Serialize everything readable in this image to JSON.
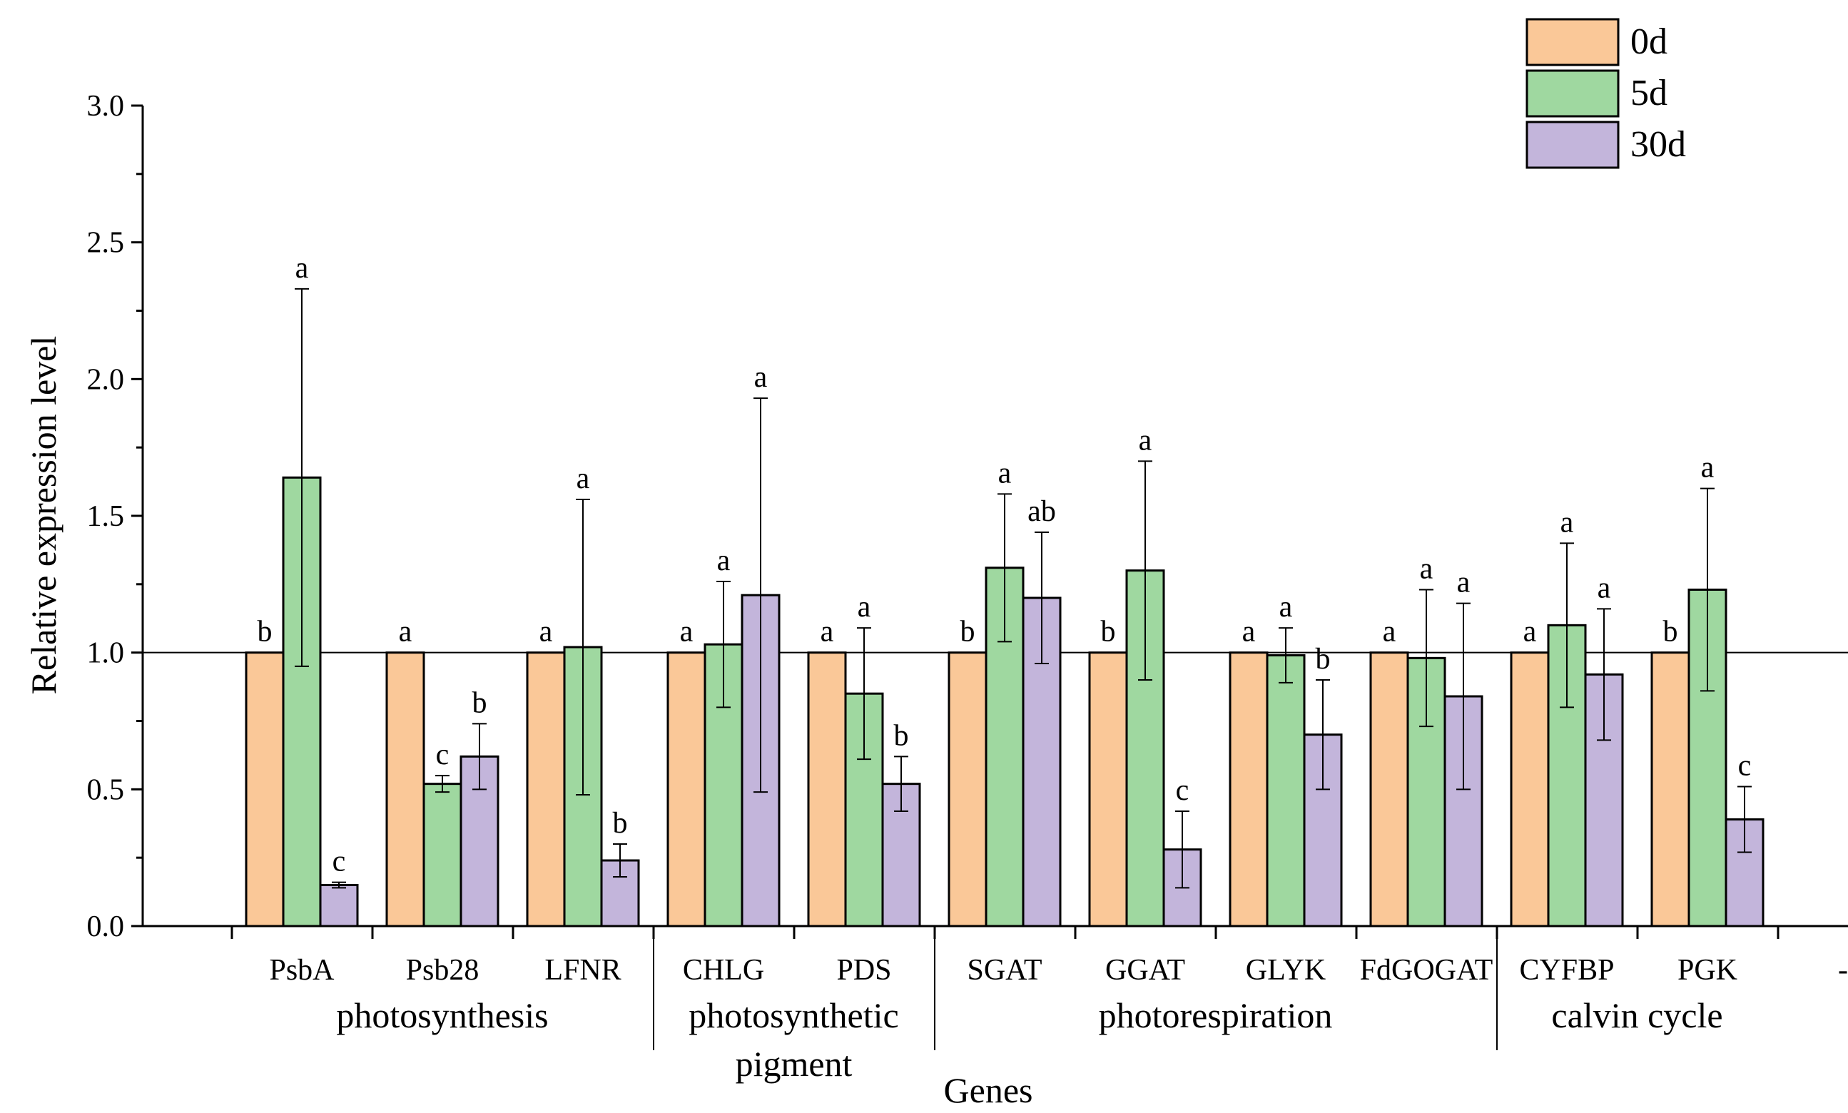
{
  "chart_data": {
    "type": "bar",
    "title": "",
    "xlabel": "Genes",
    "ylabel": "Relative expression level",
    "ylim": [
      0,
      3.0
    ],
    "yticks": [
      "0.0",
      "0.5",
      "1.0",
      "1.5",
      "2.0",
      "2.5",
      "3.0"
    ],
    "reference_line": 1.0,
    "categories": [
      "PsbA",
      "Psb28",
      "LFNR",
      "CHLG",
      "PDS",
      "SGAT",
      "GGAT",
      "GLYK",
      "FdGOGAT",
      "CYFBP",
      "PGK"
    ],
    "extra_tick_label": "--",
    "series": [
      {
        "name": "0d",
        "color": "#FAC898",
        "values": [
          1.0,
          1.0,
          1.0,
          1.0,
          1.0,
          1.0,
          1.0,
          1.0,
          1.0,
          1.0,
          1.0
        ],
        "errors": [
          null,
          null,
          null,
          null,
          null,
          null,
          null,
          null,
          null,
          null,
          null
        ],
        "letters": [
          "b",
          "a",
          "a",
          "a",
          "a",
          "b",
          "b",
          "a",
          "a",
          "a",
          "b"
        ]
      },
      {
        "name": "5d",
        "color": "#9FD8A0",
        "values": [
          1.64,
          0.52,
          1.02,
          1.03,
          0.85,
          1.31,
          1.3,
          0.99,
          0.98,
          1.1,
          1.23
        ],
        "errors": [
          0.69,
          0.03,
          0.54,
          0.23,
          0.24,
          0.27,
          0.4,
          0.1,
          0.25,
          0.3,
          0.37
        ],
        "letters": [
          "a",
          "c",
          "a",
          "a",
          "a",
          "a",
          "a",
          "a",
          "a",
          "a",
          "a"
        ]
      },
      {
        "name": "30d",
        "color": "#C3B5DB",
        "values": [
          0.15,
          0.62,
          0.24,
          1.21,
          0.52,
          1.2,
          0.28,
          0.7,
          0.84,
          0.92,
          0.39
        ],
        "errors": [
          0.01,
          0.12,
          0.06,
          0.72,
          0.1,
          0.24,
          0.14,
          0.2,
          0.34,
          0.24,
          0.12
        ],
        "letters": [
          "c",
          "b",
          "b",
          "a",
          "b",
          "ab",
          "c",
          "b",
          "a",
          "a",
          "c"
        ]
      }
    ],
    "groups": [
      {
        "label": "photosynthesis",
        "members": [
          "PsbA",
          "Psb28",
          "LFNR"
        ]
      },
      {
        "label": "photosynthetic pigment",
        "members": [
          "CHLG",
          "PDS"
        ]
      },
      {
        "label": "photorespiration",
        "members": [
          "SGAT",
          "GGAT",
          "GLYK",
          "FdGOGAT"
        ]
      },
      {
        "label": "calvin cycle",
        "members": [
          "CYFBP",
          "PGK"
        ]
      }
    ],
    "legend_position": "top-right"
  }
}
